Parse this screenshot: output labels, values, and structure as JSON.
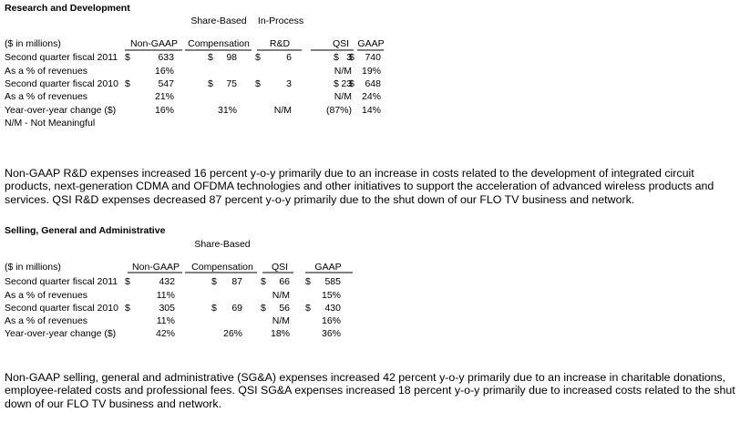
{
  "rd": {
    "title": "Research and Development",
    "super_headers": [
      "Share-Based",
      "In-Process"
    ],
    "headers": [
      "($ in millions)",
      "Non-GAAP",
      "Compensation",
      "R&D",
      "QSI",
      "GAAP"
    ],
    "rows": [
      [
        "Second quarter fiscal 2011",
        "$",
        "633",
        "$",
        "98",
        "$",
        "6",
        "$",
        "3",
        "$",
        "740"
      ],
      [
        "As a % of revenues",
        null,
        "16%",
        null,
        null,
        null,
        null,
        null,
        "N/M",
        null,
        "19%"
      ],
      [
        "Second quarter fiscal 2010",
        "$",
        "547",
        "$",
        "75",
        "$",
        "3",
        "$",
        "23",
        "$",
        "648"
      ],
      [
        "As a % of revenues",
        null,
        "21%",
        null,
        null,
        null,
        null,
        null,
        "N/M",
        null,
        "24%"
      ],
      [
        "Year-over-year change ($)",
        null,
        "16%",
        null,
        "31%",
        null,
        "N/M",
        null,
        "(87%)",
        null,
        "14%"
      ]
    ],
    "note": "N/M - Not Meaningful",
    "paragraph": "Non-GAAP R&D expenses increased 16 percent y-o-y primarily due to an increase in costs related to the development of integrated circuit products, next-generation CDMA and OFDMA technologies and other initiatives to support the acceleration of advanced wireless products and services.  QSI R&D expenses decreased 87 percent y-o-y primarily due to the shut down of our FLO TV business and network."
  },
  "sga": {
    "title": "Selling, General and Administrative",
    "super_headers": [
      "Share-Based"
    ],
    "headers": [
      "($ in millions)",
      "Non-GAAP",
      "Compensation",
      "QSI",
      "GAAP"
    ],
    "rows": [
      [
        "Second quarter fiscal 2011",
        "$",
        "432",
        "$",
        "87",
        "$",
        "66",
        "$",
        "585"
      ],
      [
        "As a % of revenues",
        null,
        "11%",
        null,
        null,
        null,
        "N/M",
        null,
        "15%"
      ],
      [
        "Second quarter fiscal 2010",
        "$",
        "305",
        "$",
        "69",
        "$",
        "56",
        "$",
        "430"
      ],
      [
        "As a % of revenues",
        null,
        "11%",
        null,
        null,
        null,
        "N/M",
        null,
        "16%"
      ],
      [
        "Year-over-year change ($)",
        null,
        "42%",
        null,
        "26%",
        null,
        "18%",
        null,
        "36%"
      ]
    ],
    "paragraph": "Non-GAAP selling, general and administrative (SG&A) expenses increased 42 percent y-o-y primarily due to an increase in charitable donations, employee-related costs and professional fees.  QSI SG&A expenses increased 18 percent y-o-y primarily due to increased costs related to the shut down of our FLO TV business and network."
  }
}
